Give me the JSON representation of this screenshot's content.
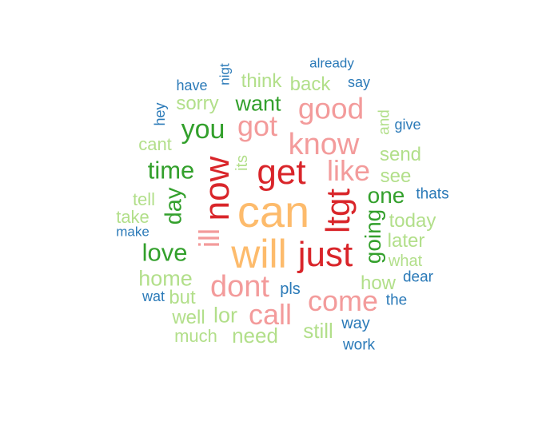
{
  "colors": {
    "red": "#d9252a",
    "pink": "#f39b9b",
    "orange": "#fdbb6c",
    "dgreen": "#33a02c",
    "lgreen": "#b2df8a",
    "blue": "#2b7ab8"
  },
  "words": [
    {
      "text": "can",
      "color": "orange",
      "weight": 10,
      "vertical": false
    },
    {
      "text": "will",
      "color": "orange",
      "weight": 9,
      "vertical": false
    },
    {
      "text": "get",
      "color": "red",
      "weight": 8,
      "vertical": false
    },
    {
      "text": "just",
      "color": "red",
      "weight": 8,
      "vertical": false
    },
    {
      "text": "now",
      "color": "red",
      "weight": 8,
      "vertical": true
    },
    {
      "text": "ltgt",
      "color": "red",
      "weight": 7,
      "vertical": true
    },
    {
      "text": "dont",
      "color": "pink",
      "weight": 6,
      "vertical": false
    },
    {
      "text": "know",
      "color": "pink",
      "weight": 6,
      "vertical": false
    },
    {
      "text": "good",
      "color": "pink",
      "weight": 6,
      "vertical": false
    },
    {
      "text": "got",
      "color": "pink",
      "weight": 6,
      "vertical": false
    },
    {
      "text": "like",
      "color": "pink",
      "weight": 6,
      "vertical": false
    },
    {
      "text": "come",
      "color": "pink",
      "weight": 6,
      "vertical": false
    },
    {
      "text": "call",
      "color": "pink",
      "weight": 6,
      "vertical": false
    },
    {
      "text": "ill",
      "color": "pink",
      "weight": 6,
      "vertical": true
    },
    {
      "text": "you",
      "color": "dgreen",
      "weight": 5,
      "vertical": false
    },
    {
      "text": "time",
      "color": "dgreen",
      "weight": 5,
      "vertical": false
    },
    {
      "text": "love",
      "color": "dgreen",
      "weight": 5,
      "vertical": false
    },
    {
      "text": "want",
      "color": "dgreen",
      "weight": 4,
      "vertical": false
    },
    {
      "text": "one",
      "color": "dgreen",
      "weight": 4,
      "vertical": false
    },
    {
      "text": "day",
      "color": "dgreen",
      "weight": 4,
      "vertical": true
    },
    {
      "text": "going",
      "color": "dgreen",
      "weight": 4,
      "vertical": true
    },
    {
      "text": "home",
      "color": "lgreen",
      "weight": 4,
      "vertical": false
    },
    {
      "text": "lor",
      "color": "lgreen",
      "weight": 4,
      "vertical": false
    },
    {
      "text": "need",
      "color": "lgreen",
      "weight": 3,
      "vertical": false
    },
    {
      "text": "still",
      "color": "lgreen",
      "weight": 3,
      "vertical": false
    },
    {
      "text": "how",
      "color": "lgreen",
      "weight": 3,
      "vertical": false
    },
    {
      "text": "sorry",
      "color": "lgreen",
      "weight": 3,
      "vertical": false
    },
    {
      "text": "think",
      "color": "lgreen",
      "weight": 3,
      "vertical": false
    },
    {
      "text": "back",
      "color": "lgreen",
      "weight": 3,
      "vertical": false
    },
    {
      "text": "today",
      "color": "lgreen",
      "weight": 3,
      "vertical": false
    },
    {
      "text": "later",
      "color": "lgreen",
      "weight": 3,
      "vertical": false
    },
    {
      "text": "send",
      "color": "lgreen",
      "weight": 3,
      "vertical": false
    },
    {
      "text": "see",
      "color": "lgreen",
      "weight": 3,
      "vertical": false
    },
    {
      "text": "but",
      "color": "lgreen",
      "weight": 3,
      "vertical": false
    },
    {
      "text": "well",
      "color": "lgreen",
      "weight": 3,
      "vertical": false
    },
    {
      "text": "much",
      "color": "lgreen",
      "weight": 2,
      "vertical": false
    },
    {
      "text": "cant",
      "color": "lgreen",
      "weight": 2,
      "vertical": false
    },
    {
      "text": "tell",
      "color": "lgreen",
      "weight": 2,
      "vertical": false
    },
    {
      "text": "take",
      "color": "lgreen",
      "weight": 2,
      "vertical": false
    },
    {
      "text": "what",
      "color": "lgreen",
      "weight": 2,
      "vertical": false
    },
    {
      "text": "its",
      "color": "lgreen",
      "weight": 2,
      "vertical": true
    },
    {
      "text": "and",
      "color": "lgreen",
      "weight": 2,
      "vertical": true
    },
    {
      "text": "pls",
      "color": "blue",
      "weight": 2,
      "vertical": false
    },
    {
      "text": "way",
      "color": "blue",
      "weight": 2,
      "vertical": false
    },
    {
      "text": "work",
      "color": "blue",
      "weight": 1,
      "vertical": false
    },
    {
      "text": "the",
      "color": "blue",
      "weight": 1,
      "vertical": false
    },
    {
      "text": "dear",
      "color": "blue",
      "weight": 1,
      "vertical": false
    },
    {
      "text": "thats",
      "color": "blue",
      "weight": 1,
      "vertical": false
    },
    {
      "text": "give",
      "color": "blue",
      "weight": 1,
      "vertical": false
    },
    {
      "text": "say",
      "color": "blue",
      "weight": 1,
      "vertical": false
    },
    {
      "text": "have",
      "color": "blue",
      "weight": 1,
      "vertical": false
    },
    {
      "text": "make",
      "color": "blue",
      "weight": 1,
      "vertical": false
    },
    {
      "text": "wat",
      "color": "blue",
      "weight": 1,
      "vertical": false
    },
    {
      "text": "hey",
      "color": "blue",
      "weight": 1,
      "vertical": true
    },
    {
      "text": "already",
      "color": "blue",
      "weight": 1,
      "vertical": false
    },
    {
      "text": "nigt",
      "color": "blue",
      "weight": 1,
      "vertical": true
    }
  ]
}
